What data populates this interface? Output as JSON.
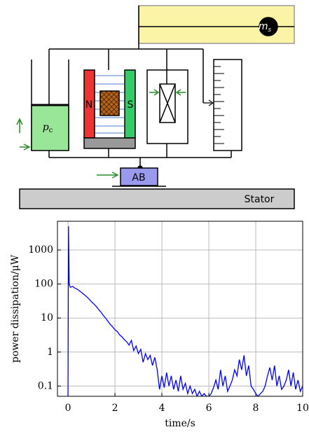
{
  "diagram": {
    "mass": "m",
    "mass_subscript": "s",
    "pressure": "p",
    "pressure_subscript": "c",
    "north": "N",
    "south": "S",
    "bearing": "AB",
    "stator": "Stator"
  },
  "chart_data": {
    "type": "line",
    "xlabel": "time/s",
    "ylabel": "power dissipation/μW",
    "x": [
      0,
      0.02,
      0.05,
      0.1,
      0.2,
      0.3,
      0.4,
      0.5,
      0.6,
      0.7,
      0.8,
      0.9,
      1.0,
      1.1,
      1.2,
      1.3,
      1.4,
      1.5,
      1.6,
      1.7,
      1.8,
      1.9,
      2.0,
      2.1,
      2.2,
      2.3,
      2.4,
      2.5,
      2.6,
      2.7,
      2.8,
      2.9,
      3.0,
      3.1,
      3.2,
      3.3,
      3.4,
      3.5,
      3.6,
      3.7,
      3.8,
      3.9,
      4.0,
      4.1,
      4.2,
      4.3,
      4.4,
      4.5,
      4.6,
      4.7,
      4.8,
      4.9,
      5.0,
      5.1,
      5.2,
      5.3,
      5.4,
      5.5,
      5.6,
      5.7,
      5.8,
      5.9,
      6.0,
      6.1,
      6.2,
      6.3,
      6.4,
      6.5,
      6.6,
      6.7,
      6.8,
      6.9,
      7.0,
      7.1,
      7.2,
      7.3,
      7.4,
      7.5,
      7.6,
      7.7,
      7.8,
      7.9,
      8.0,
      8.1,
      8.2,
      8.3,
      8.4,
      8.5,
      8.6,
      8.7,
      8.8,
      8.9,
      9.0,
      9.1,
      9.2,
      9.3,
      9.4,
      9.5,
      9.6,
      9.7,
      9.8,
      9.9,
      10.0
    ],
    "series": [
      {
        "color": "#0000ff",
        "values": [
          0.05,
          5000,
          100,
          80,
          85,
          75,
          70,
          62,
          55,
          48,
          42,
          36,
          30,
          26,
          22,
          18,
          15,
          12,
          10,
          8,
          6.5,
          5.5,
          4.5,
          4,
          3.2,
          2.8,
          2.3,
          2,
          1.6,
          2.2,
          1.1,
          1.5,
          0.9,
          1.2,
          0.5,
          0.9,
          0.6,
          0.8,
          0.4,
          0.7,
          0.3,
          0.08,
          0.2,
          0.09,
          0.25,
          0.1,
          0.2,
          0.08,
          0.15,
          0.07,
          0.2,
          0.08,
          0.12,
          0.06,
          0.1,
          0.06,
          0.08,
          0.05,
          0.07,
          0.05,
          0.06,
          0.05,
          0.05,
          0.06,
          0.09,
          0.15,
          0.08,
          0.3,
          0.1,
          0.2,
          0.07,
          0.1,
          0.15,
          0.3,
          0.2,
          0.6,
          0.3,
          0.8,
          0.2,
          0.4,
          0.1,
          0.08,
          0.06,
          0.05,
          0.06,
          0.07,
          0.1,
          0.2,
          0.35,
          0.15,
          0.4,
          0.1,
          0.2,
          0.08,
          0.1,
          0.15,
          0.3,
          0.1,
          0.25,
          0.08,
          0.15,
          0.07,
          0.1
        ]
      }
    ],
    "xlim": [
      -0.45,
      10
    ],
    "xticks": [
      0,
      2,
      4,
      6,
      8,
      10
    ],
    "ylim": [
      0.05,
      7000
    ],
    "yticks": [
      0.1,
      1,
      10,
      100,
      1000
    ],
    "ylog": true,
    "grid": true
  }
}
